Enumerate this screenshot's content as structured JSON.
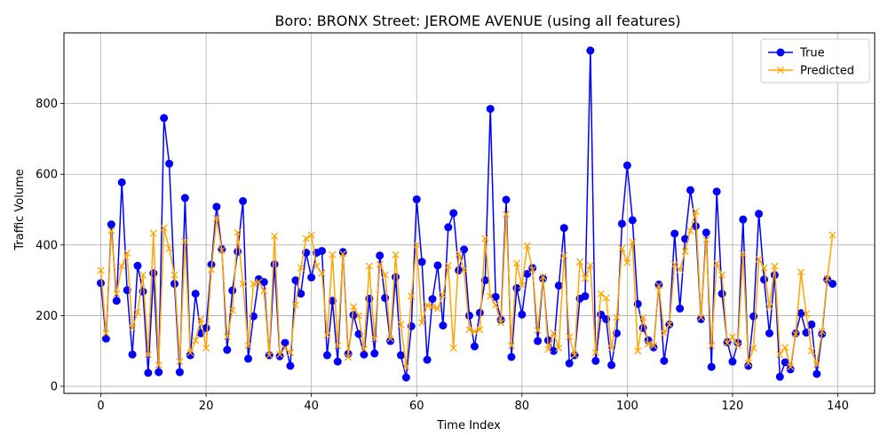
{
  "chart_data": {
    "type": "line",
    "title": "Boro: BRONX Street: JEROME AVENUE (using all features)",
    "xlabel": "Time Index",
    "ylabel": "Traffic Volume",
    "xlim": [
      -7,
      147
    ],
    "ylim": [
      -20,
      1000
    ],
    "xticks": [
      0,
      20,
      40,
      60,
      80,
      100,
      120,
      140
    ],
    "yticks": [
      0,
      200,
      400,
      600,
      800
    ],
    "grid": true,
    "legend_position": "top-right",
    "x": [
      0,
      1,
      2,
      3,
      4,
      5,
      6,
      7,
      8,
      9,
      10,
      11,
      12,
      13,
      14,
      15,
      16,
      17,
      18,
      19,
      20,
      21,
      22,
      23,
      24,
      25,
      26,
      27,
      28,
      29,
      30,
      31,
      32,
      33,
      34,
      35,
      36,
      37,
      38,
      39,
      40,
      41,
      42,
      43,
      44,
      45,
      46,
      47,
      48,
      49,
      50,
      51,
      52,
      53,
      54,
      55,
      56,
      57,
      58,
      59,
      60,
      61,
      62,
      63,
      64,
      65,
      66,
      67,
      68,
      69,
      70,
      71,
      72,
      73,
      74,
      75,
      76,
      77,
      78,
      79,
      80,
      81,
      82,
      83,
      84,
      85,
      86,
      87,
      88,
      89,
      90,
      91,
      92,
      93,
      94,
      95,
      96,
      97,
      98,
      99,
      100,
      101,
      102,
      103,
      104,
      105,
      106,
      107,
      108,
      109,
      110,
      111,
      112,
      113,
      114,
      115,
      116,
      117,
      118,
      119,
      120,
      121,
      122,
      123,
      124,
      125,
      126,
      127,
      128,
      129,
      130,
      131,
      132,
      133,
      134,
      135,
      136,
      137,
      138,
      139
    ],
    "series": [
      {
        "name": "True",
        "color": "#0000ff",
        "marker": "circle",
        "values": [
          292,
          135,
          458,
          242,
          577,
          272,
          90,
          341,
          268,
          38,
          320,
          40,
          759,
          630,
          290,
          40,
          533,
          88,
          262,
          150,
          165,
          344,
          508,
          388,
          103,
          271,
          381,
          524,
          78,
          198,
          303,
          295,
          88,
          345,
          85,
          123,
          58,
          300,
          262,
          378,
          308,
          378,
          383,
          88,
          242,
          70,
          380,
          92,
          202,
          148,
          90,
          248,
          93,
          370,
          250,
          128,
          309,
          88,
          25,
          170,
          529,
          352,
          75,
          247,
          342,
          172,
          450,
          490,
          328,
          387,
          200,
          113,
          208,
          300,
          785,
          253,
          188,
          528,
          83,
          278,
          203,
          318,
          335,
          128,
          305,
          130,
          100,
          285,
          448,
          65,
          88,
          248,
          255,
          950,
          72,
          203,
          190,
          60,
          150,
          460,
          625,
          470,
          233,
          165,
          130,
          110,
          288,
          72,
          175,
          432,
          220,
          417,
          555,
          453,
          190,
          435,
          55,
          551,
          262,
          125,
          70,
          123,
          472,
          58,
          198,
          488,
          302,
          150,
          315,
          27,
          68,
          48,
          150,
          207,
          152,
          175,
          35,
          148,
          302,
          290
        ]
      },
      {
        "name": "Predicted",
        "color": "#ffa500",
        "marker": "x",
        "values": [
          328,
          150,
          440,
          262,
          340,
          377,
          165,
          210,
          315,
          90,
          433,
          60,
          448,
          390,
          315,
          70,
          410,
          95,
          130,
          190,
          108,
          330,
          475,
          385,
          140,
          215,
          435,
          290,
          115,
          290,
          295,
          270,
          88,
          425,
          90,
          108,
          95,
          230,
          335,
          418,
          428,
          340,
          320,
          145,
          372,
          115,
          375,
          82,
          225,
          200,
          105,
          340,
          135,
          345,
          315,
          135,
          372,
          175,
          55,
          255,
          400,
          180,
          230,
          225,
          220,
          258,
          342,
          108,
          375,
          330,
          160,
          155,
          160,
          418,
          255,
          230,
          180,
          487,
          115,
          348,
          285,
          398,
          330,
          158,
          310,
          105,
          150,
          108,
          370,
          140,
          88,
          352,
          305,
          342,
          95,
          262,
          250,
          108,
          195,
          390,
          350,
          408,
          100,
          195,
          120,
          115,
          285,
          150,
          175,
          345,
          330,
          382,
          440,
          495,
          195,
          415,
          115,
          348,
          315,
          122,
          140,
          115,
          375,
          65,
          108,
          360,
          335,
          225,
          340,
          90,
          110,
          55,
          148,
          323,
          205,
          100,
          62,
          155,
          305,
          428
        ]
      }
    ]
  }
}
